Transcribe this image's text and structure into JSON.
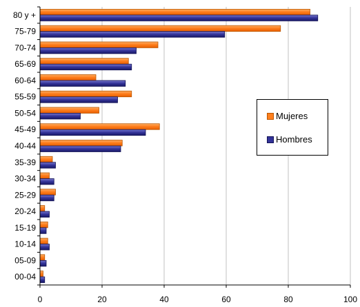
{
  "chart_data": {
    "type": "bar",
    "orientation": "horizontal",
    "categories": [
      "80 y +",
      "75-79",
      "70-74",
      "65-69",
      "60-64",
      "55-59",
      "50-54",
      "45-49",
      "40-44",
      "35-39",
      "30-34",
      "25-29",
      "20-24",
      "15-19",
      "10-14",
      "05-09",
      "00-04"
    ],
    "series": [
      {
        "name": "Mujeres",
        "color": "#ff7f1e",
        "values": [
          87,
          77.5,
          38,
          28.5,
          18,
          29.5,
          19,
          38.5,
          26.5,
          4,
          3,
          5,
          1.5,
          2.5,
          2.5,
          1.5,
          1
        ]
      },
      {
        "name": "Hombres",
        "color": "#333399",
        "values": [
          89.5,
          59.5,
          31,
          29.5,
          27.5,
          25,
          13,
          34,
          26,
          5,
          4.5,
          4.5,
          3,
          2,
          3,
          2,
          1.5
        ]
      }
    ],
    "xlim": [
      0,
      100
    ],
    "x_ticks": [
      "0",
      "20",
      "40",
      "60",
      "80",
      "100"
    ],
    "grid": true,
    "legend_position": "right"
  }
}
